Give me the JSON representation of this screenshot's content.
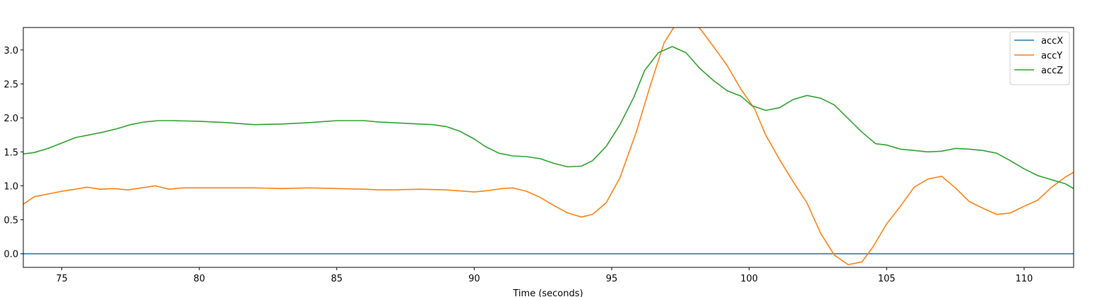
{
  "chart_data": {
    "type": "line",
    "title": "",
    "xlabel": "Time (seconds)",
    "ylabel": "",
    "xlim": [
      73.6,
      111.8
    ],
    "ylim": [
      -0.2,
      3.33
    ],
    "xticks": [
      75,
      80,
      85,
      90,
      95,
      100,
      105,
      110
    ],
    "xtick_labels": [
      "75",
      "80",
      "85",
      "90",
      "95",
      "100",
      "105",
      "110"
    ],
    "yticks": [
      0.0,
      0.5,
      1.0,
      1.5,
      2.0,
      2.5,
      3.0
    ],
    "ytick_labels": [
      "0.0",
      "0.5",
      "1.0",
      "1.5",
      "2.0",
      "2.5",
      "3.0"
    ],
    "grid": false,
    "legend_position": "top-right",
    "series": [
      {
        "name": "accX",
        "color": "#1f77b4",
        "x": [
          73.6,
          111.8
        ],
        "y": [
          0.0,
          0.0
        ]
      },
      {
        "name": "accY",
        "color": "#ff7f0e",
        "x": [
          73.6,
          74.0,
          74.5,
          75.0,
          75.5,
          75.9,
          76.4,
          76.9,
          77.4,
          77.9,
          78.4,
          78.9,
          79.4,
          80.0,
          81.0,
          82.0,
          83.0,
          84.0,
          85.0,
          86.0,
          86.5,
          87.0,
          88.0,
          89.0,
          90.0,
          90.5,
          91.0,
          91.4,
          91.9,
          92.4,
          92.9,
          93.4,
          93.9,
          94.3,
          94.8,
          95.3,
          95.9,
          96.4,
          96.9,
          97.3,
          97.8,
          98.2,
          98.7,
          99.2,
          99.7,
          100.2,
          100.6,
          101.1,
          101.6,
          102.1,
          102.6,
          103.1,
          103.6,
          104.1,
          104.5,
          105.0,
          105.5,
          106.0,
          106.5,
          107.0,
          107.5,
          108.0,
          108.5,
          109.0,
          109.5,
          110.0,
          110.5,
          111.0,
          111.5,
          111.8
        ],
        "y": [
          0.73,
          0.84,
          0.88,
          0.92,
          0.95,
          0.98,
          0.95,
          0.96,
          0.94,
          0.97,
          1.0,
          0.95,
          0.97,
          0.97,
          0.97,
          0.97,
          0.96,
          0.97,
          0.96,
          0.95,
          0.94,
          0.94,
          0.95,
          0.94,
          0.91,
          0.93,
          0.96,
          0.97,
          0.92,
          0.83,
          0.71,
          0.6,
          0.54,
          0.58,
          0.75,
          1.12,
          1.8,
          2.47,
          3.1,
          3.36,
          3.42,
          3.32,
          3.05,
          2.77,
          2.42,
          2.13,
          1.75,
          1.39,
          1.06,
          0.75,
          0.3,
          -0.02,
          -0.16,
          -0.12,
          0.1,
          0.44,
          0.7,
          0.98,
          1.1,
          1.14,
          0.97,
          0.77,
          0.67,
          0.58,
          0.6,
          0.7,
          0.79,
          0.98,
          1.13,
          1.2
        ]
      },
      {
        "name": "accZ",
        "color": "#2ca02c",
        "x": [
          73.6,
          74.0,
          74.5,
          75.0,
          75.5,
          76.0,
          76.5,
          77.0,
          77.5,
          78.0,
          78.5,
          79.0,
          80.0,
          81.0,
          82.0,
          83.0,
          84.0,
          85.0,
          85.5,
          86.0,
          86.5,
          87.0,
          88.0,
          88.5,
          89.0,
          89.5,
          90.0,
          90.4,
          90.9,
          91.4,
          91.9,
          92.4,
          92.9,
          93.4,
          93.9,
          94.3,
          94.8,
          95.3,
          95.8,
          96.2,
          96.7,
          97.2,
          97.7,
          98.2,
          98.7,
          99.2,
          99.7,
          100.1,
          100.6,
          101.1,
          101.6,
          102.1,
          102.6,
          103.1,
          103.6,
          104.1,
          104.6,
          105.0,
          105.5,
          106.0,
          106.5,
          107.0,
          107.5,
          108.0,
          108.5,
          109.0,
          109.5,
          110.0,
          110.5,
          111.0,
          111.5,
          111.8
        ],
        "y": [
          1.47,
          1.49,
          1.55,
          1.63,
          1.71,
          1.75,
          1.79,
          1.84,
          1.9,
          1.94,
          1.96,
          1.96,
          1.95,
          1.93,
          1.9,
          1.91,
          1.93,
          1.96,
          1.96,
          1.96,
          1.94,
          1.93,
          1.91,
          1.9,
          1.87,
          1.8,
          1.69,
          1.58,
          1.48,
          1.44,
          1.43,
          1.4,
          1.33,
          1.28,
          1.29,
          1.37,
          1.58,
          1.9,
          2.3,
          2.7,
          2.96,
          3.05,
          2.96,
          2.73,
          2.55,
          2.4,
          2.32,
          2.18,
          2.11,
          2.15,
          2.27,
          2.33,
          2.29,
          2.19,
          1.99,
          1.79,
          1.62,
          1.6,
          1.54,
          1.52,
          1.5,
          1.51,
          1.55,
          1.54,
          1.52,
          1.48,
          1.37,
          1.25,
          1.15,
          1.09,
          1.03,
          0.96
        ]
      }
    ]
  }
}
